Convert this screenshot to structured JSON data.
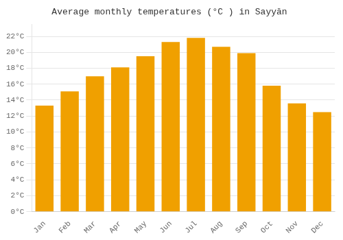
{
  "chart_data": {
    "type": "bar",
    "title": "Average monthly temperatures (°C ) in Sayyān",
    "categories": [
      "Jan",
      "Feb",
      "Mar",
      "Apr",
      "May",
      "Jun",
      "Jul",
      "Aug",
      "Sep",
      "Oct",
      "Nov",
      "Dec"
    ],
    "values": [
      13.3,
      15.1,
      17.0,
      18.1,
      19.5,
      21.3,
      21.8,
      20.7,
      19.9,
      15.8,
      13.6,
      12.5
    ],
    "color": "#F0A000",
    "ylim": [
      0,
      23.5
    ],
    "yticks": [
      {
        "value": 0,
        "label": "0°C"
      },
      {
        "value": 2,
        "label": "2°C"
      },
      {
        "value": 4,
        "label": "4°C"
      },
      {
        "value": 6,
        "label": "6°C"
      },
      {
        "value": 8,
        "label": "8°C"
      },
      {
        "value": 10,
        "label": "10°C"
      },
      {
        "value": 12,
        "label": "12°C"
      },
      {
        "value": 14,
        "label": "14°C"
      },
      {
        "value": 16,
        "label": "16°C"
      },
      {
        "value": 18,
        "label": "18°C"
      },
      {
        "value": 20,
        "label": "20°C"
      },
      {
        "value": 22,
        "label": "22°C"
      }
    ],
    "grid": true
  }
}
